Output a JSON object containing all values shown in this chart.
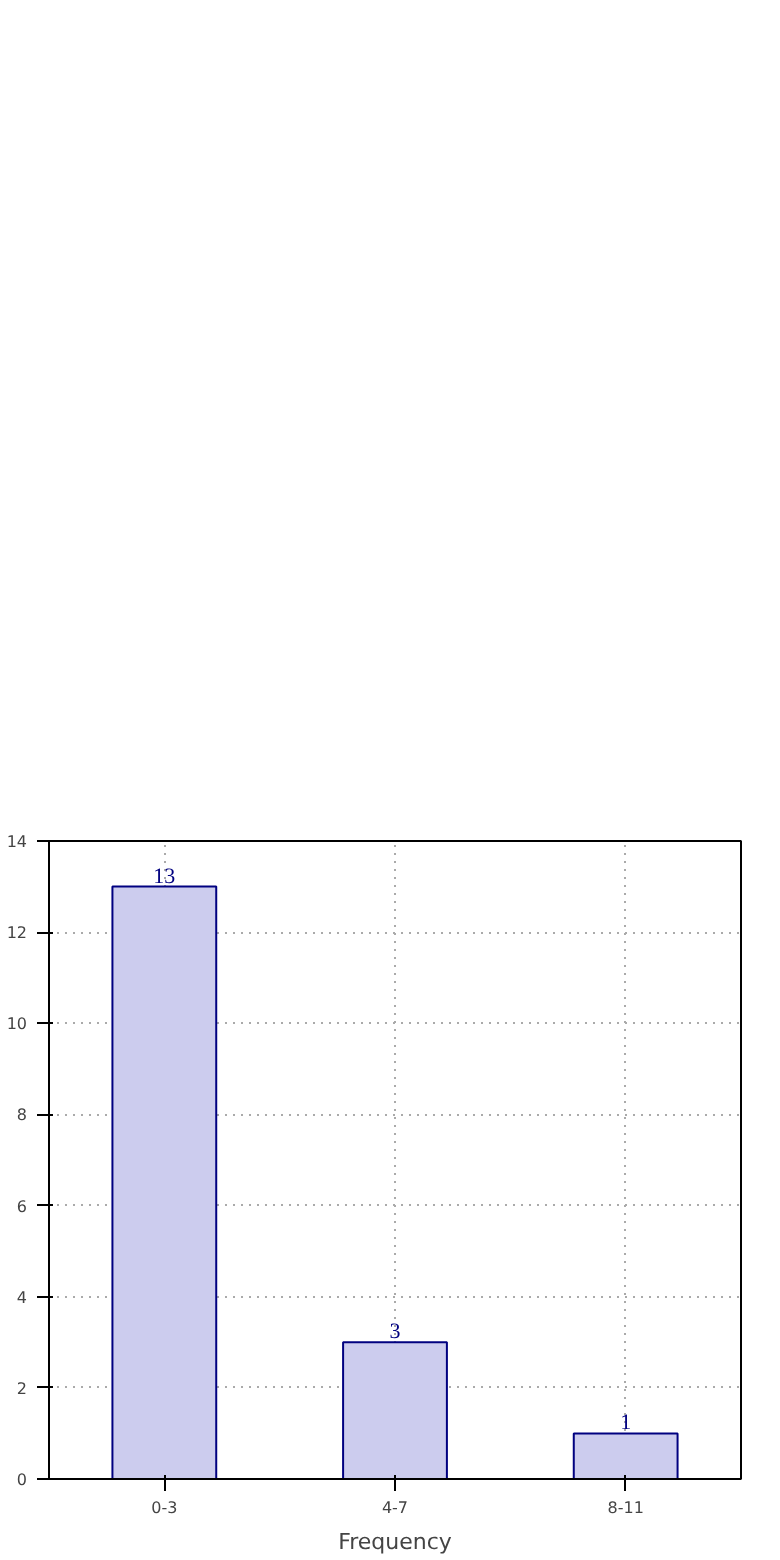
{
  "chart_data": {
    "type": "bar",
    "xlabel": "Frequency",
    "categories": [
      "0-3",
      "4-7",
      "8-11"
    ],
    "values": [
      13,
      3,
      1
    ],
    "color": "#ccccee",
    "data_labels": true,
    "ylim": [
      0,
      14
    ],
    "yticks": [
      0,
      2,
      4,
      6,
      8,
      10,
      12,
      14
    ],
    "grid": true
  }
}
